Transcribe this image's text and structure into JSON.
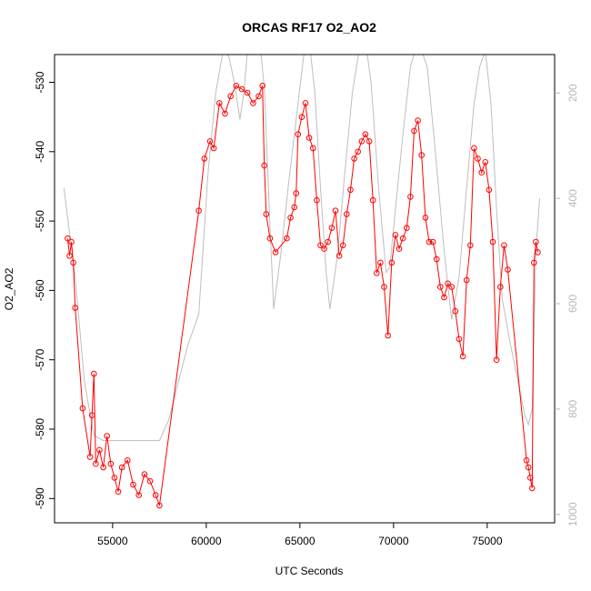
{
  "chart_data": {
    "type": "line",
    "title": "ORCAS RF17 O2_AO2",
    "xlabel": "UTC Seconds",
    "ylabel": "O2_AO2",
    "xlim": [
      51900,
      78600
    ],
    "ylim": [
      -593.5,
      -526.0
    ],
    "y2lim": [
      1016,
      127
    ],
    "x_ticks": [
      55000,
      60000,
      65000,
      70000,
      75000
    ],
    "x_tick_labels": [
      "55000",
      "60000",
      "65000",
      "70000",
      "75000"
    ],
    "y_ticks": [
      -530,
      -540,
      -550,
      -560,
      -570,
      -580,
      -590
    ],
    "y_tick_labels": [
      "-530",
      "-540",
      "-550",
      "-560",
      "-570",
      "-580",
      "-590"
    ],
    "y2_ticks": [
      200,
      400,
      600,
      800,
      1000
    ],
    "y2_tick_labels": [
      "200",
      "400",
      "600",
      "800",
      "1000"
    ],
    "grid": false,
    "colors": {
      "primary": "#ff0000",
      "secondary": "#bebebe",
      "frame": "#000000"
    },
    "series": [
      {
        "axis": "left",
        "marker": "open-circle",
        "color": "#ff0000",
        "x": [
          52600,
          52700,
          52800,
          52900,
          53000,
          53400,
          53800,
          53900,
          54000,
          54100,
          54300,
          54500,
          54700,
          54900,
          55100,
          55300,
          55500,
          55800,
          56100,
          56400,
          56700,
          57000,
          57300,
          57500,
          59600,
          59900,
          60200,
          60400,
          60700,
          61000,
          61300,
          61600,
          61900,
          62200,
          62500,
          62800,
          63000,
          63100,
          63200,
          63400,
          63700,
          64300,
          64500,
          64700,
          64800,
          64900,
          65100,
          65300,
          65500,
          65700,
          65900,
          66100,
          66300,
          66500,
          66700,
          66900,
          67100,
          67300,
          67500,
          67700,
          67900,
          68100,
          68300,
          68500,
          68700,
          68900,
          69100,
          69300,
          69500,
          69700,
          69900,
          70100,
          70300,
          70500,
          70700,
          70900,
          71100,
          71300,
          71500,
          71700,
          71900,
          72100,
          72300,
          72500,
          72700,
          72900,
          73100,
          73300,
          73500,
          73700,
          73900,
          74100,
          74300,
          74500,
          74700,
          74900,
          75100,
          75300,
          75500,
          75700,
          75900,
          76100,
          77100,
          77200,
          77300,
          77400,
          77500,
          77600,
          77700
        ],
        "y": [
          -552.5,
          -555.0,
          -553.0,
          -556.0,
          -562.5,
          -577.0,
          -584.0,
          -578.0,
          -572.0,
          -585.0,
          -583.0,
          -585.5,
          -581.0,
          -585.0,
          -587.0,
          -589.0,
          -585.5,
          -584.5,
          -588.0,
          -589.5,
          -586.5,
          -587.5,
          -589.5,
          -591.0,
          -548.5,
          -541.0,
          -538.5,
          -539.5,
          -533.0,
          -534.5,
          -532.0,
          -530.5,
          -531.0,
          -531.5,
          -533.0,
          -532.0,
          -530.5,
          -542.0,
          -549.0,
          -552.5,
          -554.5,
          -552.5,
          -549.5,
          -548.0,
          -546.0,
          -537.5,
          -535.0,
          -533.0,
          -538.0,
          -539.5,
          -547.0,
          -553.5,
          -554.0,
          -553.0,
          -551.0,
          -548.5,
          -555.0,
          -553.5,
          -549.0,
          -545.5,
          -541.0,
          -540.0,
          -538.5,
          -537.5,
          -538.5,
          -547.0,
          -557.5,
          -556.0,
          -559.5,
          -566.5,
          -556.0,
          -552.0,
          -554.0,
          -552.5,
          -551.0,
          -546.5,
          -537.0,
          -535.5,
          -540.5,
          -549.5,
          -553.0,
          -553.0,
          -555.5,
          -559.5,
          -561.0,
          -559.0,
          -559.5,
          -563.0,
          -567.0,
          -569.5,
          -558.5,
          -553.5,
          -539.5,
          -541.0,
          -543.0,
          -541.5,
          -545.5,
          -553.0,
          -570.0,
          -559.5,
          -553.5,
          -557.0,
          -584.5,
          -585.5,
          -587.0,
          -588.5,
          -556.0,
          -553.0,
          -554.5
        ]
      },
      {
        "axis": "right",
        "marker": "none",
        "color": "#bebebe",
        "x": [
          52400,
          53000,
          53500,
          54000,
          54500,
          55000,
          55500,
          56500,
          57000,
          57300,
          57500,
          58000,
          58500,
          59000,
          59600,
          60100,
          60500,
          60900,
          61200,
          61500,
          61800,
          62000,
          62200,
          62500,
          62800,
          63100,
          63400,
          63600,
          64000,
          64400,
          64800,
          65200,
          65500,
          65800,
          66100,
          66400,
          66600,
          67000,
          67400,
          67800,
          68200,
          68500,
          68800,
          69200,
          69600,
          69800,
          70100,
          70500,
          70900,
          71300,
          71800,
          72200,
          72700,
          73100,
          73500,
          73900,
          74300,
          74600,
          74900,
          75200,
          75500,
          75800,
          76200,
          76600,
          77000,
          77200,
          77400,
          77600,
          77800
        ],
        "y": [
          380,
          550,
          750,
          850,
          860,
          860,
          860,
          860,
          860,
          860,
          860,
          820,
          750,
          680,
          620,
          350,
          200,
          120,
          130,
          180,
          250,
          200,
          120,
          100,
          80,
          190,
          450,
          610,
          500,
          370,
          250,
          130,
          100,
          200,
          380,
          540,
          610,
          510,
          350,
          200,
          110,
          100,
          180,
          380,
          540,
          530,
          420,
          280,
          150,
          100,
          150,
          300,
          500,
          630,
          550,
          380,
          220,
          150,
          120,
          220,
          420,
          590,
          670,
          740,
          810,
          830,
          800,
          500,
          400
        ]
      }
    ]
  }
}
